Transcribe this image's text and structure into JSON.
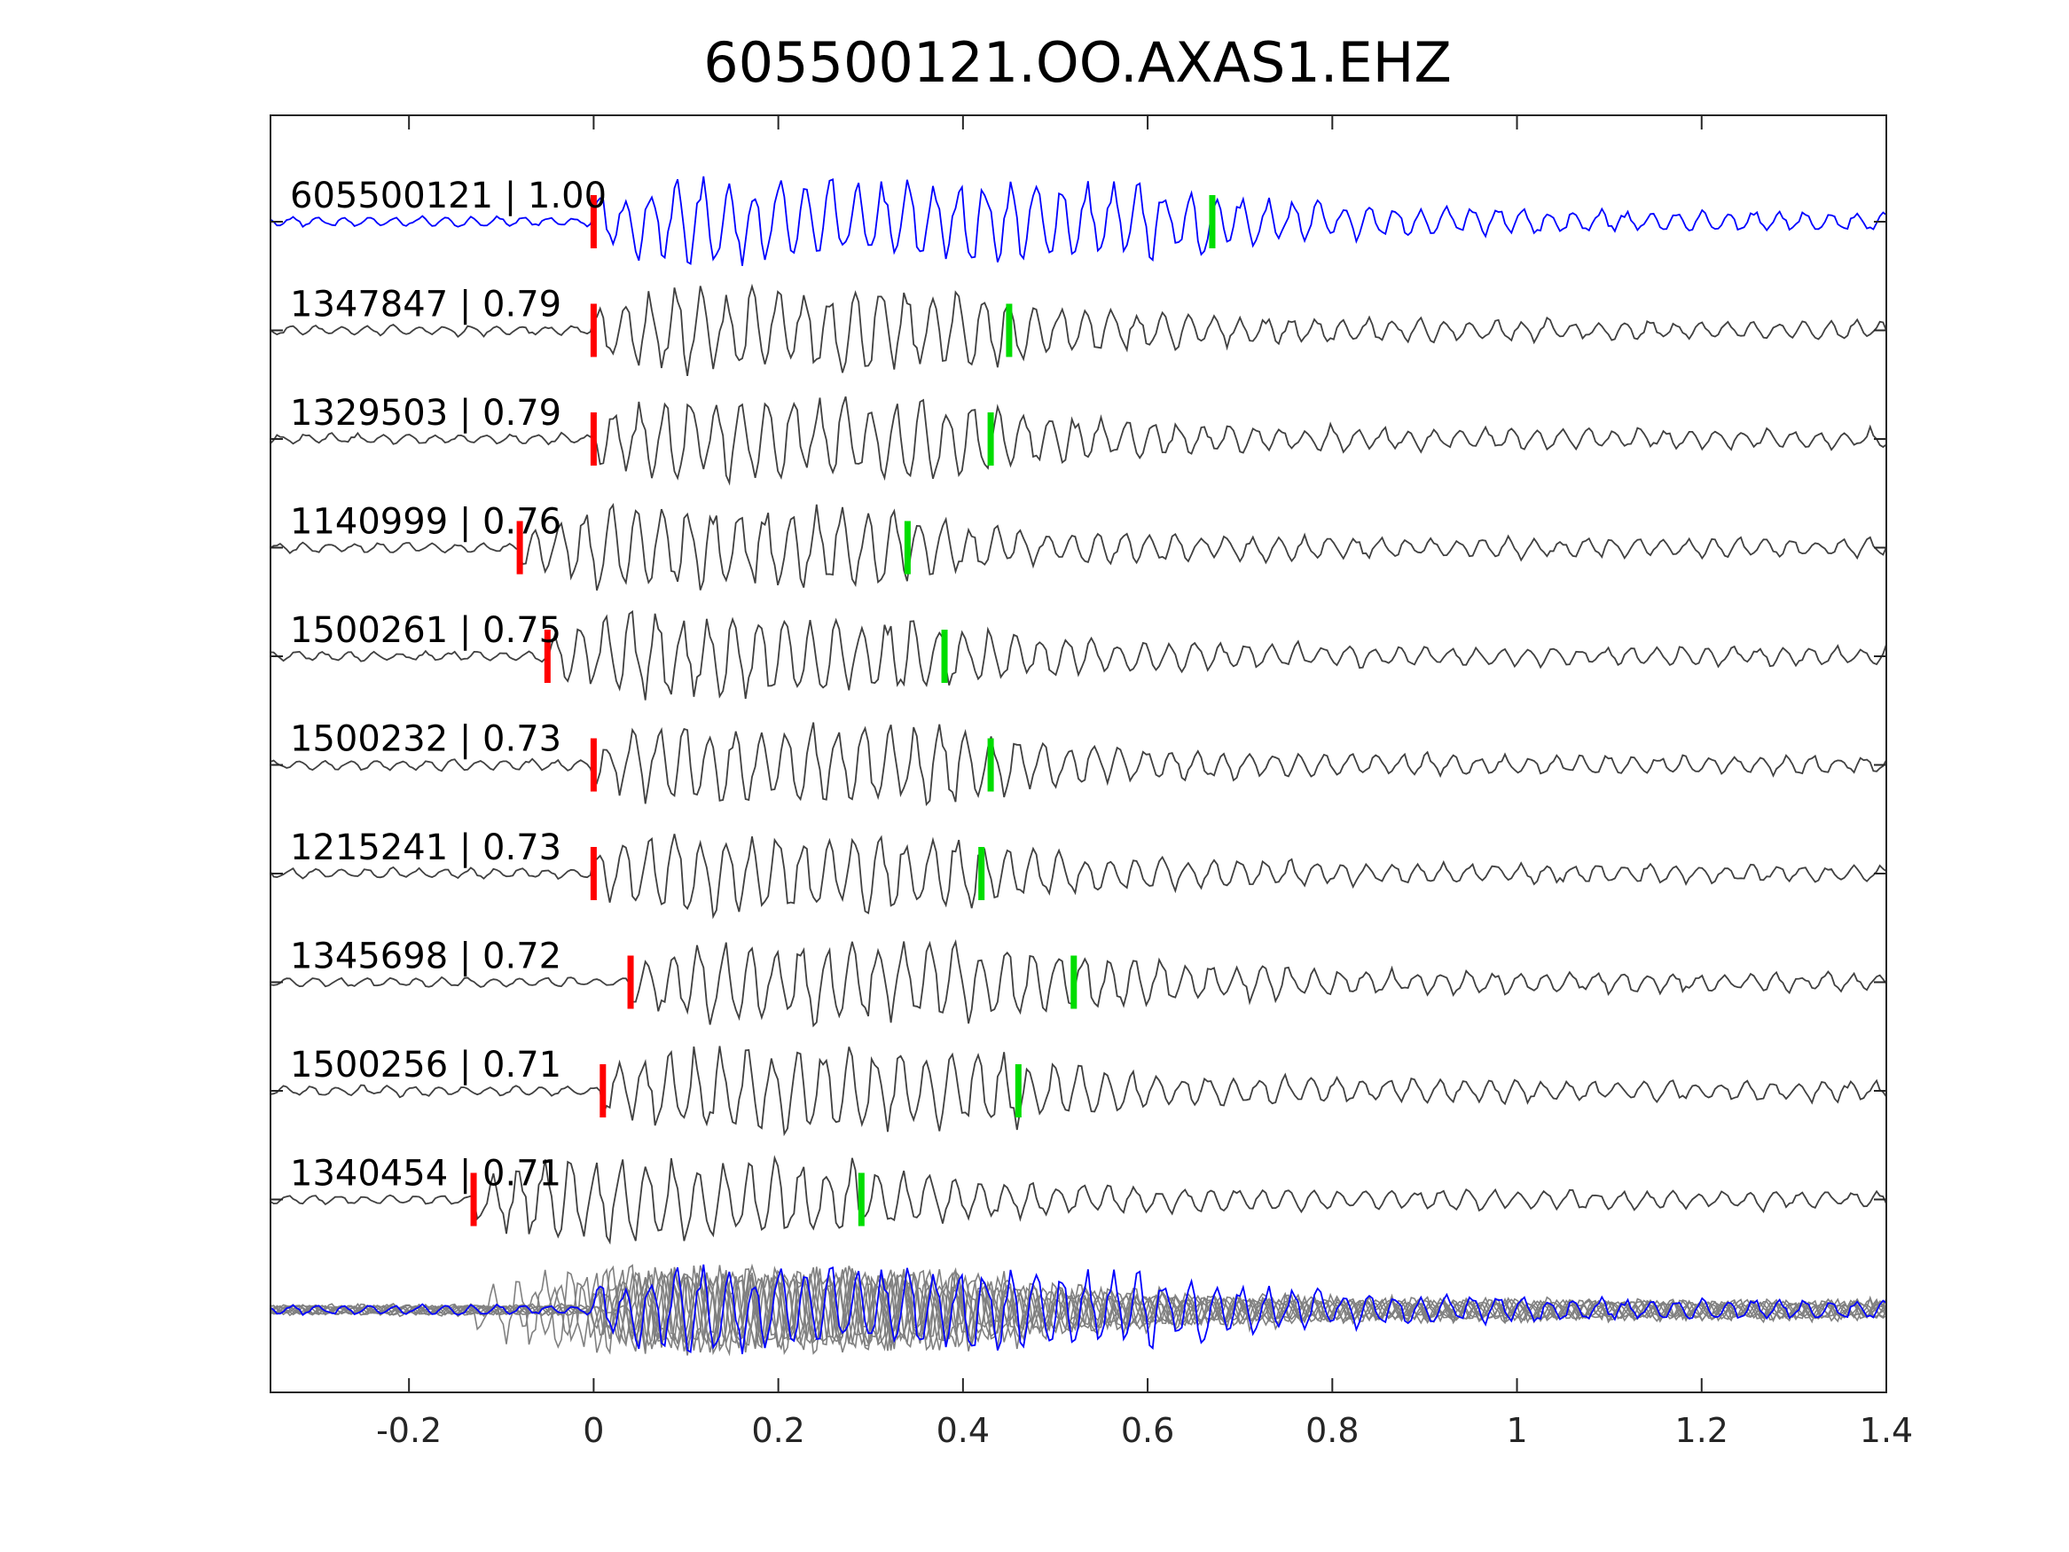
{
  "chart_data": {
    "type": "line",
    "title": "605500121.OO.AXAS1.EHZ",
    "xlabel": "",
    "ylabel": "",
    "xlim": [
      -0.35,
      1.4
    ],
    "xticks": [
      -0.2,
      0,
      0.2,
      0.4,
      0.6,
      0.8,
      1,
      1.2,
      1.4
    ],
    "xtick_labels": [
      "-0.2",
      "0",
      "0.2",
      "0.4",
      "0.6",
      "0.8",
      "1",
      "1.2",
      "1.4"
    ],
    "grid": false,
    "legend": "none",
    "colors": {
      "reference": "#0000ff",
      "matches": "#404040",
      "stack_matches": "#808080",
      "p_pick": "#ff0000",
      "s_pick": "#00dd00",
      "axes": "#262626"
    },
    "traces": [
      {
        "label": "605500121 | 1.00",
        "id": "605500121",
        "cc": "1.00",
        "p_pick": 0.0,
        "s_pick": 0.67,
        "reference": true
      },
      {
        "label": "1347847 | 0.79",
        "id": "1347847",
        "cc": "0.79",
        "p_pick": 0.0,
        "s_pick": 0.45,
        "reference": false
      },
      {
        "label": "1329503 | 0.79",
        "id": "1329503",
        "cc": "0.79",
        "p_pick": 0.0,
        "s_pick": 0.43,
        "reference": false
      },
      {
        "label": "1140999 | 0.76",
        "id": "1140999",
        "cc": "0.76",
        "p_pick": -0.08,
        "s_pick": 0.34,
        "reference": false
      },
      {
        "label": "1500261 | 0.75",
        "id": "1500261",
        "cc": "0.75",
        "p_pick": -0.05,
        "s_pick": 0.38,
        "reference": false
      },
      {
        "label": "1500232 | 0.73",
        "id": "1500232",
        "cc": "0.73",
        "p_pick": 0.0,
        "s_pick": 0.43,
        "reference": false
      },
      {
        "label": "1215241 | 0.73",
        "id": "1215241",
        "cc": "0.73",
        "p_pick": 0.0,
        "s_pick": 0.42,
        "reference": false
      },
      {
        "label": "1345698 | 0.72",
        "id": "1345698",
        "cc": "0.72",
        "p_pick": 0.04,
        "s_pick": 0.52,
        "reference": false
      },
      {
        "label": "1500256 | 0.71",
        "id": "1500256",
        "cc": "0.71",
        "p_pick": 0.01,
        "s_pick": 0.46,
        "reference": false
      },
      {
        "label": "1340454 | 0.71",
        "id": "1340454",
        "cc": "0.71",
        "p_pick": -0.13,
        "s_pick": 0.29,
        "reference": false
      }
    ]
  }
}
